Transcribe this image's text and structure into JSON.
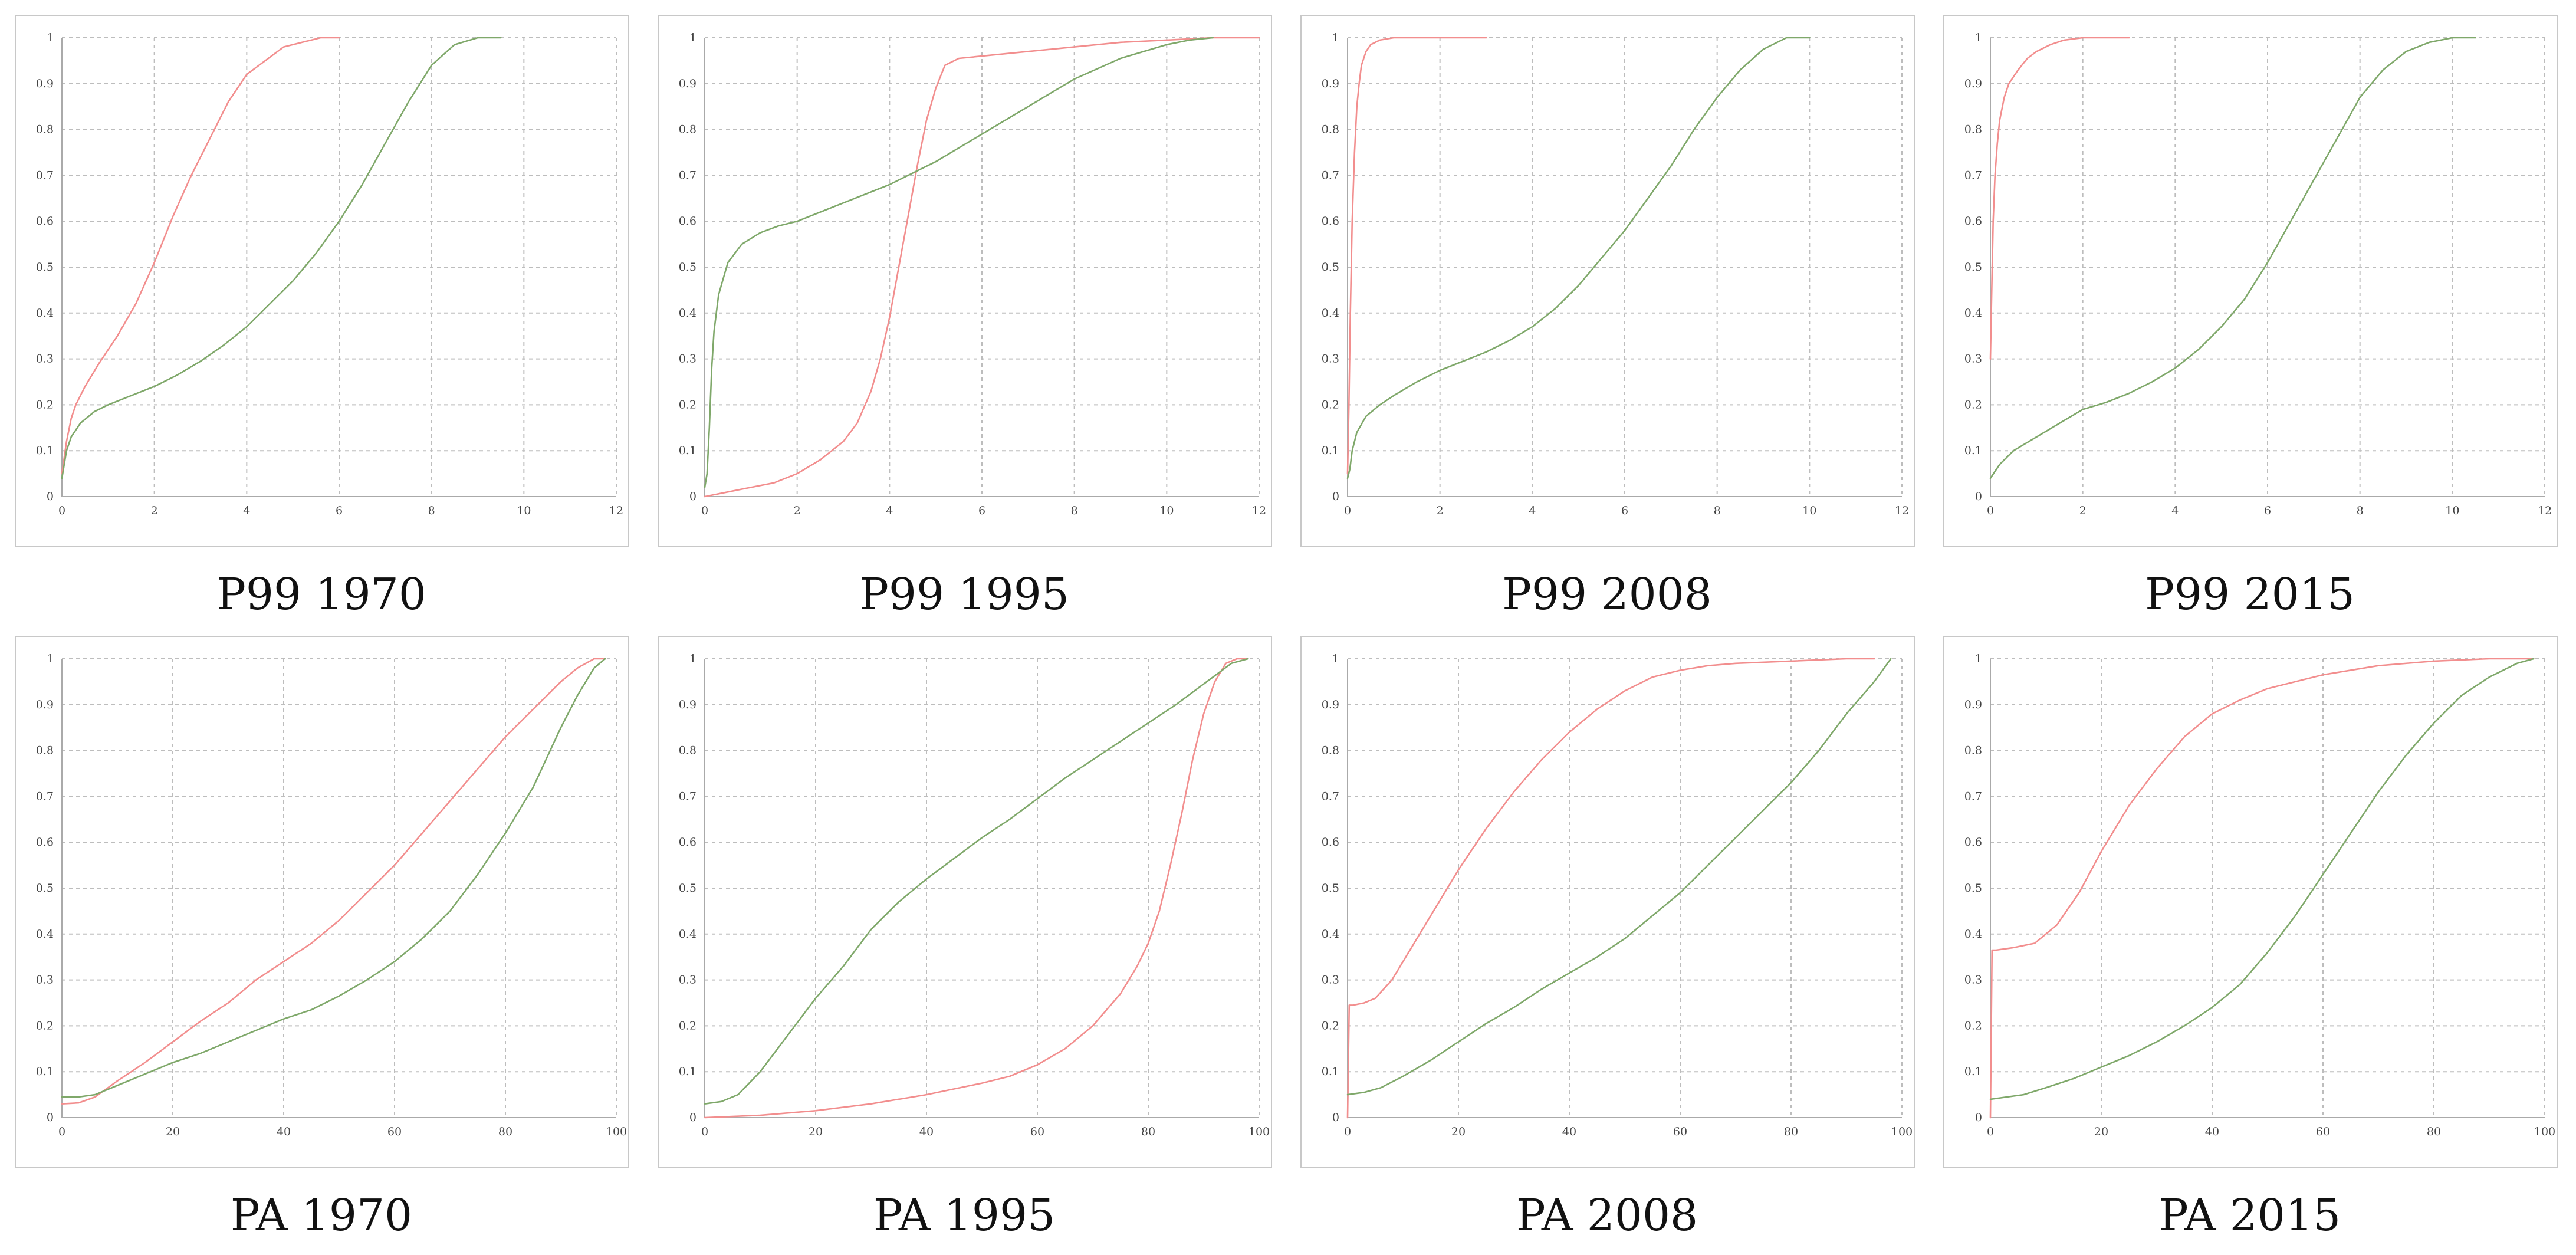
{
  "figure": {
    "colors": {
      "series_red": "#f28e8e",
      "series_green": "#7fa86a"
    },
    "charts": [
      {
        "caption": "P99 1970"
      },
      {
        "caption": "P99 1995"
      },
      {
        "caption": "P99 2008"
      },
      {
        "caption": "P99 2015"
      },
      {
        "caption": "PA 1970"
      },
      {
        "caption": "PA 1995"
      },
      {
        "caption": "PA 2008"
      },
      {
        "caption": "PA 2015"
      }
    ]
  },
  "chart_data": [
    {
      "type": "line",
      "title": "P99 1970",
      "xlim": [
        0,
        12
      ],
      "ylim": [
        0,
        1
      ],
      "xticks": [
        "0",
        "2",
        "4",
        "6",
        "8",
        "10",
        "12"
      ],
      "yticks": [
        "0",
        "0.1",
        "0.2",
        "0.3",
        "0.4",
        "0.5",
        "0.6",
        "0.7",
        "0.8",
        "0.9",
        "1"
      ],
      "series": [
        {
          "name": "red",
          "color": "#f28e8e",
          "x": [
            0,
            0.1,
            0.2,
            0.3,
            0.5,
            0.8,
            1.2,
            1.6,
            2.0,
            2.4,
            2.8,
            3.2,
            3.6,
            4.0,
            4.4,
            4.8,
            5.2,
            5.6,
            6.0
          ],
          "y": [
            0.05,
            0.12,
            0.17,
            0.2,
            0.24,
            0.29,
            0.35,
            0.42,
            0.51,
            0.61,
            0.7,
            0.78,
            0.86,
            0.92,
            0.95,
            0.98,
            0.99,
            1.0,
            1.0
          ]
        },
        {
          "name": "green",
          "color": "#7fa86a",
          "x": [
            0,
            0.1,
            0.2,
            0.4,
            0.7,
            1.0,
            1.5,
            2.0,
            2.5,
            3.0,
            3.5,
            4.0,
            4.5,
            5.0,
            5.5,
            6.0,
            6.5,
            7.0,
            7.5,
            8.0,
            8.5,
            9.0,
            9.5
          ],
          "y": [
            0.04,
            0.1,
            0.13,
            0.16,
            0.185,
            0.2,
            0.22,
            0.24,
            0.265,
            0.295,
            0.33,
            0.37,
            0.42,
            0.47,
            0.53,
            0.6,
            0.68,
            0.77,
            0.86,
            0.94,
            0.985,
            1.0,
            1.0
          ]
        }
      ]
    },
    {
      "type": "line",
      "title": "P99 1995",
      "xlim": [
        0,
        12
      ],
      "ylim": [
        0,
        1
      ],
      "xticks": [
        "0",
        "2",
        "4",
        "6",
        "8",
        "10",
        "12"
      ],
      "yticks": [
        "0",
        "0.1",
        "0.2",
        "0.3",
        "0.4",
        "0.5",
        "0.6",
        "0.7",
        "0.8",
        "0.9",
        "1"
      ],
      "series": [
        {
          "name": "red",
          "color": "#f28e8e",
          "x": [
            0,
            0.5,
            1.0,
            1.5,
            2.0,
            2.5,
            3.0,
            3.3,
            3.6,
            3.8,
            4.0,
            4.2,
            4.4,
            4.6,
            4.8,
            5.0,
            5.2,
            5.5,
            6.0,
            7.0,
            8.0,
            9.0,
            10.0,
            11.0,
            12.0
          ],
          "y": [
            0,
            0.01,
            0.02,
            0.03,
            0.05,
            0.08,
            0.12,
            0.16,
            0.23,
            0.3,
            0.39,
            0.5,
            0.61,
            0.72,
            0.82,
            0.89,
            0.94,
            0.955,
            0.96,
            0.97,
            0.98,
            0.99,
            0.995,
            1.0,
            1.0
          ]
        },
        {
          "name": "green",
          "color": "#7fa86a",
          "x": [
            0,
            0.05,
            0.1,
            0.15,
            0.2,
            0.3,
            0.5,
            0.8,
            1.2,
            1.6,
            2.0,
            3.0,
            4.0,
            5.0,
            6.0,
            7.0,
            8.0,
            9.0,
            10.0,
            10.5,
            11.0
          ],
          "y": [
            0.02,
            0.05,
            0.15,
            0.28,
            0.36,
            0.44,
            0.51,
            0.55,
            0.575,
            0.59,
            0.6,
            0.64,
            0.68,
            0.73,
            0.79,
            0.85,
            0.91,
            0.955,
            0.985,
            0.995,
            1.0
          ]
        }
      ]
    },
    {
      "type": "line",
      "title": "P99 2008",
      "xlim": [
        0,
        12
      ],
      "ylim": [
        0,
        1
      ],
      "xticks": [
        "0",
        "2",
        "4",
        "6",
        "8",
        "10",
        "12"
      ],
      "yticks": [
        "0",
        "0.1",
        "0.2",
        "0.3",
        "0.4",
        "0.5",
        "0.6",
        "0.7",
        "0.8",
        "0.9",
        "1"
      ],
      "series": [
        {
          "name": "red",
          "color": "#f28e8e",
          "x": [
            0,
            0.03,
            0.06,
            0.1,
            0.15,
            0.2,
            0.25,
            0.3,
            0.4,
            0.5,
            0.7,
            1.0,
            1.5,
            2.0,
            3.0
          ],
          "y": [
            0.05,
            0.2,
            0.4,
            0.6,
            0.75,
            0.85,
            0.9,
            0.94,
            0.97,
            0.985,
            0.995,
            1.0,
            1.0,
            1.0,
            1.0
          ]
        },
        {
          "name": "green",
          "color": "#7fa86a",
          "x": [
            0,
            0.05,
            0.1,
            0.2,
            0.4,
            0.7,
            1.0,
            1.5,
            2.0,
            2.5,
            3.0,
            3.5,
            4.0,
            4.5,
            5.0,
            5.5,
            6.0,
            6.5,
            7.0,
            7.5,
            8.0,
            8.5,
            9.0,
            9.5,
            10.0
          ],
          "y": [
            0.04,
            0.06,
            0.1,
            0.14,
            0.175,
            0.2,
            0.22,
            0.25,
            0.275,
            0.295,
            0.315,
            0.34,
            0.37,
            0.41,
            0.46,
            0.52,
            0.58,
            0.65,
            0.72,
            0.8,
            0.87,
            0.93,
            0.975,
            1.0,
            1.0
          ]
        }
      ]
    },
    {
      "type": "line",
      "title": "P99 2015",
      "xlim": [
        0,
        12
      ],
      "ylim": [
        0,
        1
      ],
      "xticks": [
        "0",
        "2",
        "4",
        "6",
        "8",
        "10",
        "12"
      ],
      "yticks": [
        "0",
        "0.1",
        "0.2",
        "0.3",
        "0.4",
        "0.5",
        "0.6",
        "0.7",
        "0.8",
        "0.9",
        "1"
      ],
      "series": [
        {
          "name": "red",
          "color": "#f28e8e",
          "x": [
            0,
            0.03,
            0.06,
            0.1,
            0.15,
            0.2,
            0.3,
            0.4,
            0.6,
            0.8,
            1.0,
            1.3,
            1.6,
            2.0,
            2.5,
            3.0
          ],
          "y": [
            0.3,
            0.45,
            0.6,
            0.7,
            0.77,
            0.82,
            0.87,
            0.9,
            0.93,
            0.955,
            0.97,
            0.985,
            0.995,
            1.0,
            1.0,
            1.0
          ]
        },
        {
          "name": "green",
          "color": "#7fa86a",
          "x": [
            0,
            0.2,
            0.5,
            1.0,
            1.5,
            2.0,
            2.5,
            3.0,
            3.5,
            4.0,
            4.5,
            5.0,
            5.5,
            6.0,
            6.5,
            7.0,
            7.5,
            8.0,
            8.5,
            9.0,
            9.5,
            10.0,
            10.5
          ],
          "y": [
            0.04,
            0.07,
            0.1,
            0.13,
            0.16,
            0.19,
            0.205,
            0.225,
            0.25,
            0.28,
            0.32,
            0.37,
            0.43,
            0.51,
            0.6,
            0.69,
            0.78,
            0.87,
            0.93,
            0.97,
            0.99,
            1.0,
            1.0
          ]
        }
      ]
    },
    {
      "type": "line",
      "title": "PA 1970",
      "xlim": [
        0,
        100
      ],
      "ylim": [
        0,
        1
      ],
      "xticks": [
        "0",
        "20",
        "40",
        "60",
        "80",
        "100"
      ],
      "yticks": [
        "0",
        "0.1",
        "0.2",
        "0.3",
        "0.4",
        "0.5",
        "0.6",
        "0.7",
        "0.8",
        "0.9",
        "1"
      ],
      "series": [
        {
          "name": "red",
          "color": "#f28e8e",
          "x": [
            0,
            3,
            6,
            10,
            15,
            20,
            25,
            30,
            35,
            40,
            45,
            50,
            55,
            60,
            65,
            70,
            75,
            80,
            85,
            90,
            93,
            96,
            98
          ],
          "y": [
            0.03,
            0.032,
            0.045,
            0.08,
            0.12,
            0.165,
            0.21,
            0.25,
            0.3,
            0.34,
            0.38,
            0.43,
            0.49,
            0.55,
            0.62,
            0.69,
            0.76,
            0.83,
            0.89,
            0.95,
            0.98,
            1.0,
            1.0
          ]
        },
        {
          "name": "green",
          "color": "#7fa86a",
          "x": [
            0,
            3,
            6,
            10,
            15,
            20,
            25,
            30,
            35,
            40,
            45,
            50,
            55,
            60,
            65,
            70,
            75,
            80,
            85,
            90,
            93,
            96,
            98
          ],
          "y": [
            0.045,
            0.045,
            0.05,
            0.07,
            0.095,
            0.12,
            0.14,
            0.165,
            0.19,
            0.215,
            0.235,
            0.265,
            0.3,
            0.34,
            0.39,
            0.45,
            0.53,
            0.62,
            0.72,
            0.85,
            0.92,
            0.98,
            1.0
          ]
        }
      ]
    },
    {
      "type": "line",
      "title": "PA 1995",
      "xlim": [
        0,
        100
      ],
      "ylim": [
        0,
        1
      ],
      "xticks": [
        "0",
        "20",
        "40",
        "60",
        "80",
        "100"
      ],
      "yticks": [
        "0",
        "0.1",
        "0.2",
        "0.3",
        "0.4",
        "0.5",
        "0.6",
        "0.7",
        "0.8",
        "0.9",
        "1"
      ],
      "series": [
        {
          "name": "red",
          "color": "#f28e8e",
          "x": [
            0,
            10,
            20,
            30,
            40,
            50,
            55,
            60,
            65,
            70,
            75,
            78,
            80,
            82,
            84,
            86,
            88,
            90,
            92,
            94,
            96,
            98
          ],
          "y": [
            0,
            0.005,
            0.015,
            0.03,
            0.05,
            0.075,
            0.09,
            0.115,
            0.15,
            0.2,
            0.27,
            0.33,
            0.38,
            0.45,
            0.55,
            0.66,
            0.78,
            0.88,
            0.95,
            0.99,
            1.0,
            1.0
          ]
        },
        {
          "name": "green",
          "color": "#7fa86a",
          "x": [
            0,
            3,
            6,
            10,
            15,
            20,
            25,
            30,
            35,
            40,
            45,
            50,
            55,
            60,
            65,
            70,
            75,
            80,
            85,
            90,
            95,
            98
          ],
          "y": [
            0.03,
            0.035,
            0.05,
            0.1,
            0.18,
            0.26,
            0.33,
            0.41,
            0.47,
            0.52,
            0.565,
            0.61,
            0.65,
            0.695,
            0.74,
            0.78,
            0.82,
            0.86,
            0.9,
            0.945,
            0.99,
            1.0
          ]
        }
      ]
    },
    {
      "type": "line",
      "title": "PA 2008",
      "xlim": [
        0,
        100
      ],
      "ylim": [
        0,
        1
      ],
      "xticks": [
        "0",
        "20",
        "40",
        "60",
        "80",
        "100"
      ],
      "yticks": [
        "0",
        "0.1",
        "0.2",
        "0.3",
        "0.4",
        "0.5",
        "0.6",
        "0.7",
        "0.8",
        "0.9",
        "1"
      ],
      "series": [
        {
          "name": "red",
          "color": "#f28e8e",
          "x": [
            0,
            0.3,
            1,
            3,
            5,
            8,
            12,
            16,
            20,
            25,
            30,
            35,
            40,
            45,
            50,
            55,
            60,
            65,
            70,
            80,
            90,
            95
          ],
          "y": [
            0,
            0.245,
            0.245,
            0.25,
            0.26,
            0.3,
            0.38,
            0.46,
            0.54,
            0.63,
            0.71,
            0.78,
            0.84,
            0.89,
            0.93,
            0.96,
            0.975,
            0.985,
            0.99,
            0.995,
            1.0,
            1.0
          ]
        },
        {
          "name": "green",
          "color": "#7fa86a",
          "x": [
            0,
            3,
            6,
            10,
            15,
            20,
            25,
            30,
            35,
            40,
            45,
            50,
            55,
            60,
            65,
            70,
            75,
            80,
            85,
            90,
            95,
            98
          ],
          "y": [
            0.05,
            0.055,
            0.065,
            0.09,
            0.125,
            0.165,
            0.205,
            0.24,
            0.28,
            0.315,
            0.35,
            0.39,
            0.44,
            0.49,
            0.55,
            0.61,
            0.67,
            0.73,
            0.8,
            0.88,
            0.95,
            1.0
          ]
        }
      ]
    },
    {
      "type": "line",
      "title": "PA 2015",
      "xlim": [
        0,
        100
      ],
      "ylim": [
        0,
        1
      ],
      "xticks": [
        "0",
        "20",
        "40",
        "60",
        "80",
        "100"
      ],
      "yticks": [
        "0",
        "0.1",
        "0.2",
        "0.3",
        "0.4",
        "0.5",
        "0.6",
        "0.7",
        "0.8",
        "0.9",
        "1"
      ],
      "series": [
        {
          "name": "red",
          "color": "#f28e8e",
          "x": [
            0,
            0.3,
            1,
            4,
            8,
            12,
            16,
            20,
            25,
            30,
            35,
            40,
            45,
            50,
            55,
            60,
            70,
            80,
            90,
            98
          ],
          "y": [
            0,
            0.365,
            0.365,
            0.37,
            0.38,
            0.42,
            0.49,
            0.58,
            0.68,
            0.76,
            0.83,
            0.88,
            0.91,
            0.935,
            0.95,
            0.965,
            0.985,
            0.995,
            1.0,
            1.0
          ]
        },
        {
          "name": "green",
          "color": "#7fa86a",
          "x": [
            0,
            3,
            6,
            10,
            15,
            20,
            25,
            30,
            35,
            40,
            45,
            50,
            55,
            60,
            65,
            70,
            75,
            80,
            85,
            90,
            95,
            98
          ],
          "y": [
            0.04,
            0.045,
            0.05,
            0.065,
            0.085,
            0.11,
            0.135,
            0.165,
            0.2,
            0.24,
            0.29,
            0.36,
            0.44,
            0.53,
            0.62,
            0.71,
            0.79,
            0.86,
            0.92,
            0.96,
            0.99,
            1.0
          ]
        }
      ]
    }
  ]
}
